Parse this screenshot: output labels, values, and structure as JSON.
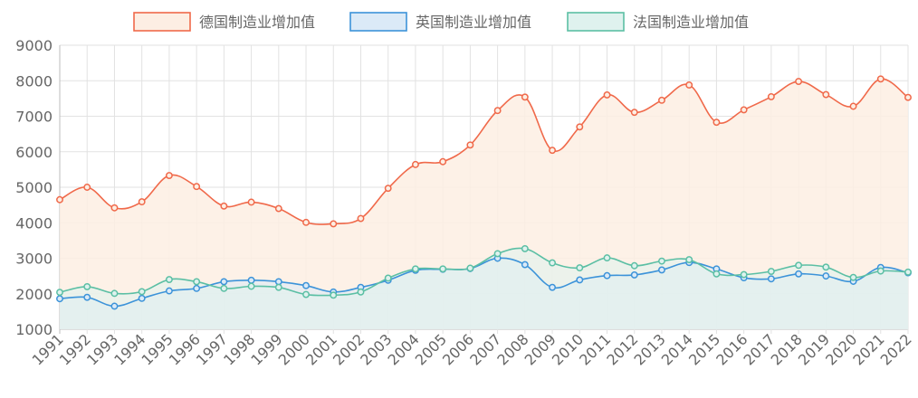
{
  "chart_data": {
    "type": "area",
    "x": [
      1991,
      1992,
      1993,
      1994,
      1995,
      1996,
      1997,
      1998,
      1999,
      2000,
      2001,
      2002,
      2003,
      2004,
      2005,
      2006,
      2007,
      2008,
      2009,
      2010,
      2011,
      2012,
      2013,
      2014,
      2015,
      2016,
      2017,
      2018,
      2019,
      2020,
      2021,
      2022
    ],
    "x_tick_labels": [
      "1991",
      "1992",
      "1993",
      "1994",
      "1995",
      "1996",
      "1997",
      "1998",
      "1999",
      "2000",
      "2001",
      "2002",
      "2003",
      "2004",
      "2005",
      "2006",
      "2007",
      "2008",
      "2009",
      "2010",
      "2011",
      "2012",
      "2013",
      "2014",
      "2015",
      "2016",
      "2017",
      "2018",
      "2019",
      "2020",
      "2021",
      "2022"
    ],
    "y_tick_labels": [
      "9000",
      "8000",
      "7000",
      "6000",
      "5000",
      "4000",
      "3000",
      "2000",
      "1000"
    ],
    "ylim": [
      1000,
      9000
    ],
    "grid": true,
    "legend_position": "top",
    "series": [
      {
        "name": "德国制造业增加值",
        "color": "#f0694a",
        "fill": "#fdeee3",
        "values": [
          4650,
          5000,
          4420,
          4590,
          5330,
          5020,
          4470,
          4580,
          4400,
          4010,
          3970,
          4120,
          4970,
          5640,
          5720,
          6190,
          7160,
          7540,
          6040,
          6700,
          7600,
          7110,
          7450,
          7880,
          6830,
          7180,
          7550,
          7980,
          7610,
          7280,
          8050,
          7530
        ]
      },
      {
        "name": "英国制造业增加值",
        "color": "#3c93d9",
        "fill": "#dbeaf7",
        "values": [
          1860,
          1900,
          1650,
          1870,
          2080,
          2150,
          2340,
          2380,
          2340,
          2230,
          2050,
          2180,
          2380,
          2660,
          2690,
          2710,
          3000,
          2820,
          2180,
          2390,
          2510,
          2530,
          2670,
          2880,
          2700,
          2450,
          2420,
          2560,
          2500,
          2350,
          2740,
          2590
        ]
      },
      {
        "name": "法国制造业增加值",
        "color": "#5bbfa4",
        "fill": "#dff2ee",
        "values": [
          2040,
          2200,
          2010,
          2060,
          2400,
          2340,
          2150,
          2210,
          2180,
          1980,
          1960,
          2050,
          2440,
          2700,
          2700,
          2720,
          3130,
          3270,
          2870,
          2730,
          3010,
          2790,
          2920,
          2960,
          2560,
          2540,
          2630,
          2800,
          2750,
          2460,
          2640,
          2610
        ]
      }
    ]
  }
}
